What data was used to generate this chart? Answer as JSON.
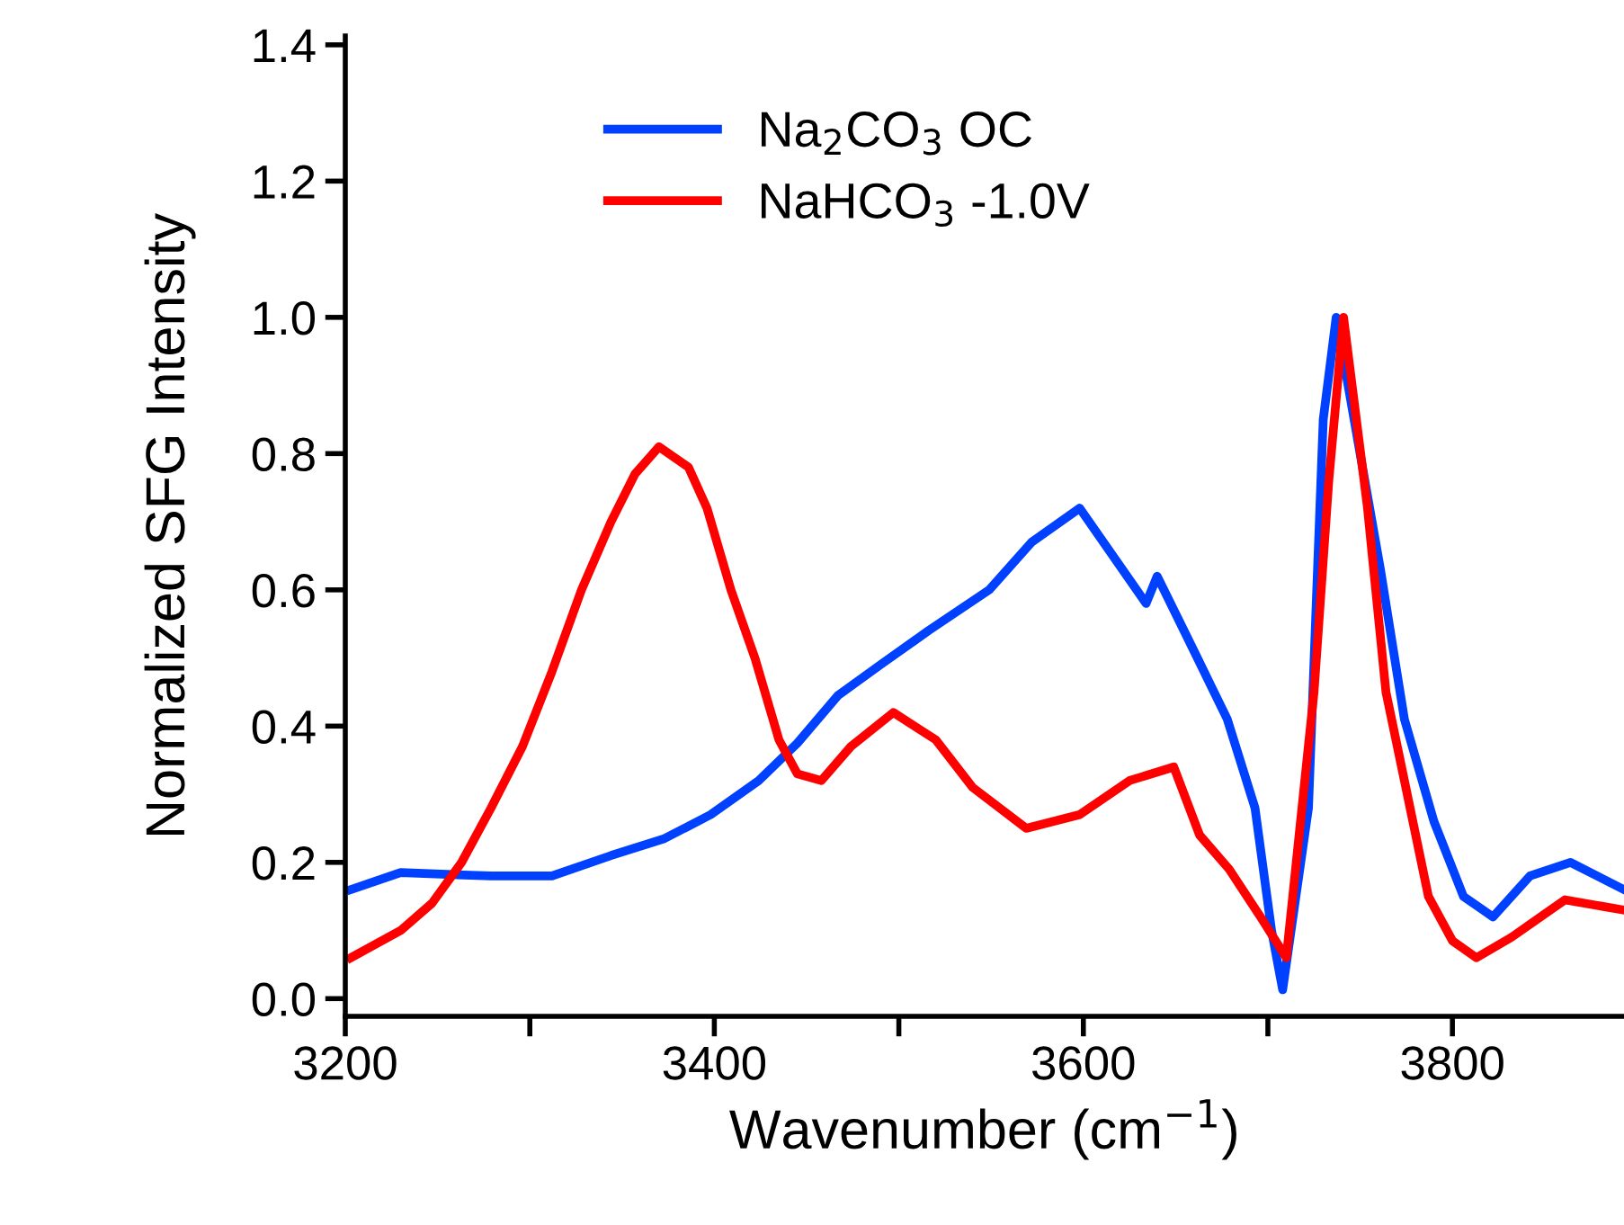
{
  "chart_data": {
    "type": "line",
    "xlabel": "Wavenumber (cm$^{−1}$)",
    "ylabel": "Normalized SFG Intensity",
    "xlim": [
      3200,
      3893
    ],
    "ylim": [
      -0.026,
      1.413
    ],
    "xticks": [
      3200,
      {
        "value": 3300,
        "label": null
      },
      3400,
      {
        "value": 3500,
        "label": null
      },
      3600,
      {
        "value": 3700,
        "label": null
      },
      3800
    ],
    "yticks": [
      {
        "value": 0,
        "label": "0.0"
      },
      {
        "value": 0.2,
        "label": "0.2"
      },
      {
        "value": 0.4,
        "label": "0.4"
      },
      {
        "value": 0.6,
        "label": "0.6"
      },
      {
        "value": 0.8,
        "label": "0.8"
      },
      {
        "value": 1.0,
        "label": "1.0"
      },
      {
        "value": 1.2,
        "label": "1.2"
      },
      {
        "value": 1.4,
        "label": "1.4"
      }
    ],
    "grid": false,
    "legend": "top left",
    "marker": "none",
    "line_style": "solid",
    "series": [
      {
        "name": "Na$_{2}$CO$_{3}$ OC",
        "color": "#0040ff",
        "x": [
          3203,
          3230,
          3279,
          3312,
          3344,
          3373,
          3398,
          3424,
          3445,
          3467,
          3490,
          3516,
          3549,
          3572,
          3598,
          3634,
          3640,
          3660,
          3678,
          3693,
          3702,
          3708,
          3722,
          3730,
          3737,
          3761,
          3774,
          3790,
          3806,
          3822,
          3842,
          3864,
          3893
        ],
        "values": [
          0.16,
          0.185,
          0.18,
          0.18,
          0.21,
          0.235,
          0.27,
          0.32,
          0.375,
          0.445,
          0.49,
          0.54,
          0.6,
          0.67,
          0.72,
          0.58,
          0.62,
          0.51,
          0.41,
          0.28,
          0.1,
          0.013,
          0.28,
          0.85,
          1.0,
          0.63,
          0.41,
          0.26,
          0.15,
          0.12,
          0.18,
          0.2,
          0.16
        ]
      },
      {
        "name": "NaHCO$_{3}$ -1.0V",
        "color": "#ff0000",
        "x": [
          3203,
          3230,
          3247,
          3263,
          3279,
          3296,
          3312,
          3328,
          3344,
          3357,
          3370,
          3386,
          3396,
          3409,
          3422,
          3435,
          3445,
          3458,
          3474,
          3497,
          3520,
          3540,
          3569,
          3598,
          3625,
          3649,
          3663,
          3679,
          3696,
          3710,
          3725,
          3733,
          3741,
          3754,
          3764,
          3774,
          3787,
          3800,
          3813,
          3832,
          3861,
          3893
        ],
        "values": [
          0.06,
          0.1,
          0.14,
          0.2,
          0.28,
          0.37,
          0.48,
          0.6,
          0.7,
          0.77,
          0.81,
          0.78,
          0.72,
          0.6,
          0.5,
          0.38,
          0.33,
          0.32,
          0.37,
          0.42,
          0.38,
          0.31,
          0.25,
          0.27,
          0.32,
          0.34,
          0.24,
          0.19,
          0.12,
          0.06,
          0.45,
          0.76,
          1.0,
          0.72,
          0.45,
          0.32,
          0.15,
          0.085,
          0.06,
          0.09,
          0.145,
          0.13
        ]
      }
    ]
  }
}
